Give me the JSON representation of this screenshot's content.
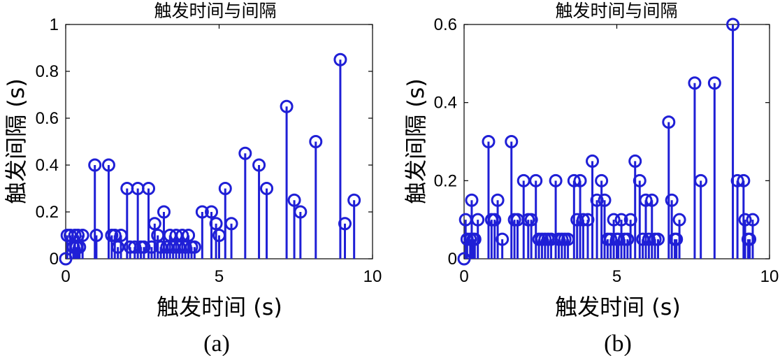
{
  "chart_data": [
    {
      "type": "stem",
      "title": "触发时间与间隔",
      "xlabel": "触发时间 (s)",
      "ylabel": "触发间隔 (s)",
      "panel_label": "(a)",
      "xlim": [
        0,
        10
      ],
      "ylim": [
        0,
        1
      ],
      "xticks": [
        "0",
        "5",
        "10"
      ],
      "yticks": [
        "0",
        "0.2",
        "0.4",
        "0.6",
        "0.8",
        "1"
      ],
      "color": "#1f1fd6",
      "points": [
        {
          "x": 0.0,
          "y": 0.0
        },
        {
          "x": 0.05,
          "y": 0.1
        },
        {
          "x": 0.15,
          "y": 0.1
        },
        {
          "x": 0.25,
          "y": 0.05
        },
        {
          "x": 0.3,
          "y": 0.1
        },
        {
          "x": 0.35,
          "y": 0.05
        },
        {
          "x": 0.4,
          "y": 0.1
        },
        {
          "x": 0.45,
          "y": 0.05
        },
        {
          "x": 0.55,
          "y": 0.1
        },
        {
          "x": 0.95,
          "y": 0.4
        },
        {
          "x": 1.0,
          "y": 0.1
        },
        {
          "x": 1.4,
          "y": 0.4
        },
        {
          "x": 1.5,
          "y": 0.1
        },
        {
          "x": 1.6,
          "y": 0.1
        },
        {
          "x": 1.7,
          "y": 0.05
        },
        {
          "x": 1.8,
          "y": 0.1
        },
        {
          "x": 2.0,
          "y": 0.3
        },
        {
          "x": 2.1,
          "y": 0.05
        },
        {
          "x": 2.25,
          "y": 0.05
        },
        {
          "x": 2.35,
          "y": 0.3
        },
        {
          "x": 2.45,
          "y": 0.05
        },
        {
          "x": 2.55,
          "y": 0.05
        },
        {
          "x": 2.7,
          "y": 0.3
        },
        {
          "x": 2.8,
          "y": 0.05
        },
        {
          "x": 2.9,
          "y": 0.15
        },
        {
          "x": 3.0,
          "y": 0.1
        },
        {
          "x": 3.1,
          "y": 0.05
        },
        {
          "x": 3.2,
          "y": 0.2
        },
        {
          "x": 3.3,
          "y": 0.05
        },
        {
          "x": 3.4,
          "y": 0.1
        },
        {
          "x": 3.5,
          "y": 0.05
        },
        {
          "x": 3.6,
          "y": 0.1
        },
        {
          "x": 3.7,
          "y": 0.05
        },
        {
          "x": 3.8,
          "y": 0.1
        },
        {
          "x": 3.9,
          "y": 0.05
        },
        {
          "x": 4.0,
          "y": 0.1
        },
        {
          "x": 4.1,
          "y": 0.05
        },
        {
          "x": 4.2,
          "y": 0.05
        },
        {
          "x": 4.45,
          "y": 0.2
        },
        {
          "x": 4.75,
          "y": 0.2
        },
        {
          "x": 4.9,
          "y": 0.15
        },
        {
          "x": 5.0,
          "y": 0.1
        },
        {
          "x": 5.2,
          "y": 0.3
        },
        {
          "x": 5.4,
          "y": 0.15
        },
        {
          "x": 5.85,
          "y": 0.45
        },
        {
          "x": 6.3,
          "y": 0.4
        },
        {
          "x": 6.55,
          "y": 0.3
        },
        {
          "x": 7.2,
          "y": 0.65
        },
        {
          "x": 7.45,
          "y": 0.25
        },
        {
          "x": 7.65,
          "y": 0.2
        },
        {
          "x": 8.15,
          "y": 0.5
        },
        {
          "x": 8.95,
          "y": 0.85
        },
        {
          "x": 9.1,
          "y": 0.15
        },
        {
          "x": 9.4,
          "y": 0.25
        }
      ]
    },
    {
      "type": "stem",
      "title": "触发时间与间隔",
      "xlabel": "触发时间 (s)",
      "ylabel": "触发间隔 (s)",
      "panel_label": "(b)",
      "xlim": [
        0,
        10
      ],
      "ylim": [
        0,
        0.6
      ],
      "xticks": [
        "0",
        "5",
        "10"
      ],
      "yticks": [
        "0",
        "0.2",
        "0.4",
        "0.6"
      ],
      "color": "#1f1fd6",
      "points": [
        {
          "x": 0.0,
          "y": 0.0
        },
        {
          "x": 0.05,
          "y": 0.1
        },
        {
          "x": 0.1,
          "y": 0.05
        },
        {
          "x": 0.2,
          "y": 0.05
        },
        {
          "x": 0.25,
          "y": 0.15
        },
        {
          "x": 0.3,
          "y": 0.05
        },
        {
          "x": 0.35,
          "y": 0.05
        },
        {
          "x": 0.45,
          "y": 0.1
        },
        {
          "x": 0.8,
          "y": 0.3
        },
        {
          "x": 0.9,
          "y": 0.1
        },
        {
          "x": 1.0,
          "y": 0.1
        },
        {
          "x": 1.1,
          "y": 0.15
        },
        {
          "x": 1.25,
          "y": 0.05
        },
        {
          "x": 1.55,
          "y": 0.3
        },
        {
          "x": 1.65,
          "y": 0.1
        },
        {
          "x": 1.75,
          "y": 0.1
        },
        {
          "x": 1.95,
          "y": 0.2
        },
        {
          "x": 2.1,
          "y": 0.1
        },
        {
          "x": 2.2,
          "y": 0.1
        },
        {
          "x": 2.35,
          "y": 0.2
        },
        {
          "x": 2.45,
          "y": 0.05
        },
        {
          "x": 2.55,
          "y": 0.05
        },
        {
          "x": 2.65,
          "y": 0.05
        },
        {
          "x": 2.75,
          "y": 0.05
        },
        {
          "x": 2.85,
          "y": 0.05
        },
        {
          "x": 3.0,
          "y": 0.2
        },
        {
          "x": 3.1,
          "y": 0.05
        },
        {
          "x": 3.2,
          "y": 0.05
        },
        {
          "x": 3.3,
          "y": 0.05
        },
        {
          "x": 3.4,
          "y": 0.05
        },
        {
          "x": 3.6,
          "y": 0.2
        },
        {
          "x": 3.7,
          "y": 0.1
        },
        {
          "x": 3.8,
          "y": 0.2
        },
        {
          "x": 3.9,
          "y": 0.1
        },
        {
          "x": 4.05,
          "y": 0.1
        },
        {
          "x": 4.2,
          "y": 0.25
        },
        {
          "x": 4.35,
          "y": 0.15
        },
        {
          "x": 4.5,
          "y": 0.2
        },
        {
          "x": 4.6,
          "y": 0.15
        },
        {
          "x": 4.7,
          "y": 0.05
        },
        {
          "x": 4.8,
          "y": 0.05
        },
        {
          "x": 4.9,
          "y": 0.1
        },
        {
          "x": 5.0,
          "y": 0.05
        },
        {
          "x": 5.05,
          "y": 0.05
        },
        {
          "x": 5.15,
          "y": 0.1
        },
        {
          "x": 5.25,
          "y": 0.05
        },
        {
          "x": 5.35,
          "y": 0.05
        },
        {
          "x": 5.45,
          "y": 0.1
        },
        {
          "x": 5.6,
          "y": 0.25
        },
        {
          "x": 5.75,
          "y": 0.2
        },
        {
          "x": 5.85,
          "y": 0.05
        },
        {
          "x": 5.95,
          "y": 0.15
        },
        {
          "x": 6.05,
          "y": 0.05
        },
        {
          "x": 6.15,
          "y": 0.15
        },
        {
          "x": 6.25,
          "y": 0.05
        },
        {
          "x": 6.35,
          "y": 0.05
        },
        {
          "x": 6.7,
          "y": 0.35
        },
        {
          "x": 6.8,
          "y": 0.15
        },
        {
          "x": 6.9,
          "y": 0.05
        },
        {
          "x": 6.95,
          "y": 0.05
        },
        {
          "x": 7.05,
          "y": 0.1
        },
        {
          "x": 7.55,
          "y": 0.45
        },
        {
          "x": 7.75,
          "y": 0.2
        },
        {
          "x": 8.2,
          "y": 0.45
        },
        {
          "x": 8.8,
          "y": 0.6
        },
        {
          "x": 8.95,
          "y": 0.2
        },
        {
          "x": 9.15,
          "y": 0.2
        },
        {
          "x": 9.2,
          "y": 0.1
        },
        {
          "x": 9.3,
          "y": 0.05
        },
        {
          "x": 9.35,
          "y": 0.05
        },
        {
          "x": 9.45,
          "y": 0.1
        }
      ]
    }
  ]
}
